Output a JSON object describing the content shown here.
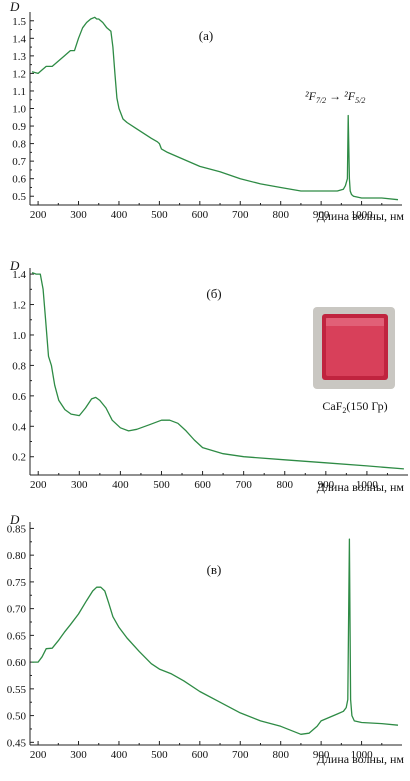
{
  "chart_data": [
    {
      "type": "line",
      "panel_label": "(а)",
      "ylabel": "D",
      "xlabel": "Длина волны, нм",
      "xlim": [
        180,
        1100
      ],
      "ylim": [
        0.45,
        1.55
      ],
      "xticks": [
        200,
        300,
        400,
        500,
        600,
        700,
        800,
        900,
        1000
      ],
      "yticks": [
        0.5,
        0.6,
        0.7,
        0.8,
        0.9,
        1.0,
        1.1,
        1.2,
        1.3,
        1.4,
        1.5
      ],
      "ytick_labels": [
        "0.5",
        "0.6",
        "0.7",
        "0.8",
        "0.9",
        "1.0",
        "1.1",
        "1.2",
        "1.3",
        "1.4",
        "1.5"
      ],
      "annotation": {
        "left": "²F",
        "left_sub": "7/2",
        "arrow": "→",
        "right": "²F",
        "right_sub": "5/2"
      },
      "color": "#2e8b45",
      "x": [
        185,
        200,
        210,
        220,
        235,
        250,
        265,
        280,
        290,
        300,
        310,
        320,
        330,
        340,
        345,
        350,
        360,
        370,
        380,
        385,
        390,
        395,
        400,
        410,
        420,
        440,
        460,
        480,
        495,
        500,
        505,
        520,
        550,
        600,
        650,
        700,
        750,
        800,
        850,
        900,
        940,
        955,
        960,
        965,
        967,
        970,
        972,
        975,
        980,
        1000,
        1050,
        1090
      ],
      "y": [
        1.21,
        1.2,
        1.22,
        1.24,
        1.24,
        1.27,
        1.3,
        1.33,
        1.33,
        1.4,
        1.46,
        1.49,
        1.51,
        1.52,
        1.51,
        1.51,
        1.49,
        1.46,
        1.44,
        1.35,
        1.2,
        1.06,
        1.0,
        0.94,
        0.92,
        0.89,
        0.86,
        0.83,
        0.81,
        0.8,
        0.77,
        0.75,
        0.72,
        0.67,
        0.64,
        0.6,
        0.57,
        0.55,
        0.53,
        0.53,
        0.53,
        0.54,
        0.56,
        0.6,
        0.96,
        0.6,
        0.53,
        0.51,
        0.5,
        0.49,
        0.49,
        0.48
      ]
    },
    {
      "type": "line",
      "panel_label": "(б)",
      "ylabel": "D",
      "xlabel": "Длина волны, нм",
      "xlim": [
        180,
        1100
      ],
      "ylim": [
        0.08,
        1.44
      ],
      "xticks": [
        200,
        300,
        400,
        500,
        600,
        700,
        800,
        900,
        1000
      ],
      "yticks": [
        0.2,
        0.4,
        0.6,
        0.8,
        1.0,
        1.2,
        1.4
      ],
      "ytick_labels": [
        "0.2",
        "0.4",
        "0.6",
        "0.8",
        "1.0",
        "1.2",
        "1.4"
      ],
      "inset_caption": {
        "main": "CaF",
        "sub": "2",
        "rest": "(150 Гр)"
      },
      "color": "#2e8b45",
      "x": [
        185,
        195,
        205,
        212,
        218,
        225,
        232,
        240,
        250,
        265,
        280,
        300,
        315,
        330,
        340,
        350,
        365,
        380,
        400,
        420,
        440,
        470,
        500,
        520,
        540,
        560,
        580,
        600,
        650,
        700,
        800,
        900,
        1000,
        1090
      ],
      "y": [
        1.41,
        1.4,
        1.4,
        1.3,
        1.1,
        0.86,
        0.8,
        0.67,
        0.57,
        0.51,
        0.48,
        0.47,
        0.52,
        0.58,
        0.59,
        0.57,
        0.52,
        0.44,
        0.39,
        0.37,
        0.38,
        0.41,
        0.44,
        0.44,
        0.42,
        0.37,
        0.31,
        0.26,
        0.22,
        0.2,
        0.18,
        0.16,
        0.14,
        0.12
      ]
    },
    {
      "type": "line",
      "panel_label": "(в)",
      "ylabel": "D",
      "xlabel": "Длина волны, нм",
      "xlim": [
        180,
        1100
      ],
      "ylim": [
        0.445,
        0.862
      ],
      "xticks": [
        200,
        300,
        400,
        500,
        600,
        700,
        800,
        900,
        1000
      ],
      "yticks": [
        0.45,
        0.5,
        0.55,
        0.6,
        0.65,
        0.7,
        0.75,
        0.8,
        0.85
      ],
      "ytick_labels": [
        "0.45",
        "0.50",
        "0.55",
        "0.60",
        "0.65",
        "0.70",
        "0.75",
        "0.80",
        "0.85"
      ],
      "color": "#2e8b45",
      "x": [
        185,
        200,
        210,
        220,
        235,
        250,
        265,
        280,
        300,
        320,
        335,
        345,
        355,
        365,
        375,
        385,
        400,
        420,
        450,
        480,
        500,
        530,
        560,
        600,
        650,
        700,
        750,
        800,
        850,
        870,
        890,
        900,
        940,
        955,
        962,
        966,
        970,
        973,
        976,
        982,
        1000,
        1050,
        1090
      ],
      "y": [
        0.6,
        0.6,
        0.61,
        0.625,
        0.626,
        0.64,
        0.656,
        0.67,
        0.69,
        0.715,
        0.733,
        0.74,
        0.74,
        0.733,
        0.71,
        0.685,
        0.665,
        0.645,
        0.62,
        0.597,
        0.587,
        0.578,
        0.565,
        0.545,
        0.525,
        0.505,
        0.49,
        0.48,
        0.465,
        0.467,
        0.48,
        0.49,
        0.503,
        0.508,
        0.515,
        0.53,
        0.83,
        0.53,
        0.5,
        0.49,
        0.487,
        0.485,
        0.482
      ]
    }
  ]
}
